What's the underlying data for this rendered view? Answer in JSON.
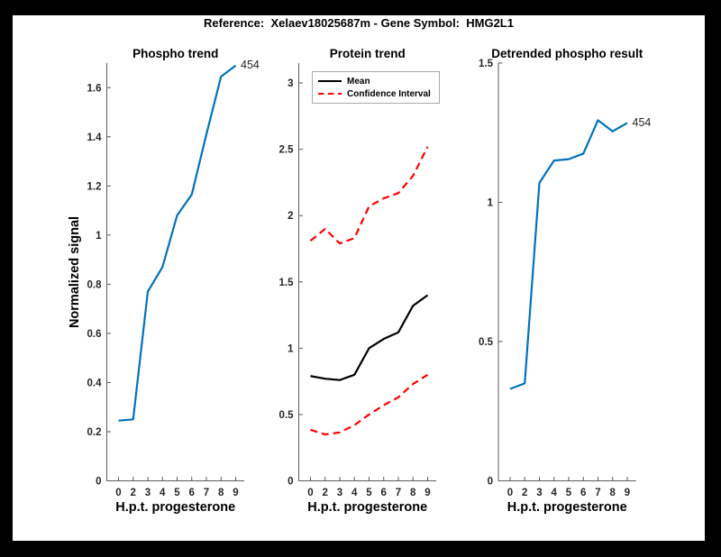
{
  "figure": {
    "title": "Reference:  Xelaev18025687m - Gene Symbol:  HMG2L1",
    "frame_color": "#000000",
    "background_color": "#ffffff"
  },
  "colors": {
    "blue_line": "#0072BD",
    "red_line": "#FF0000",
    "black_line": "#000000",
    "axis": "#5a5a5a",
    "tick_text": "#262626"
  },
  "chart_data": [
    {
      "type": "line",
      "title": "Phospho trend",
      "xlabel": "H.p.t. progesterone",
      "ylabel": "Normalized signal",
      "x_categories": [
        0,
        2,
        3,
        4,
        5,
        6,
        7,
        8,
        9
      ],
      "x_tick_labels": [
        "0",
        "2",
        "3",
        "4",
        "5",
        "6",
        "7",
        "8",
        "9"
      ],
      "ylim": [
        0,
        1.7
      ],
      "yticks": [
        0,
        0.2,
        0.4,
        0.6,
        0.8,
        1,
        1.2,
        1.4,
        1.6
      ],
      "ytick_labels": [
        "0",
        "0.2",
        "0.4",
        "0.6",
        "0.8",
        "1",
        "1.2",
        "1.4",
        "1.6"
      ],
      "grid": false,
      "series": [
        {
          "name": "phospho-signal",
          "color": "#0072BD",
          "line_style": "solid",
          "values": [
            0.245,
            0.25,
            0.77,
            0.87,
            1.08,
            1.165,
            1.41,
            1.645,
            1.69
          ]
        }
      ],
      "end_label": "454"
    },
    {
      "type": "line",
      "title": "Protein trend",
      "xlabel": "H.p.t. progesterone",
      "ylabel": "",
      "x_categories": [
        0,
        2,
        3,
        4,
        5,
        6,
        7,
        8,
        9
      ],
      "x_tick_labels": [
        "0",
        "2",
        "3",
        "4",
        "5",
        "6",
        "7",
        "8",
        "9"
      ],
      "ylim": [
        0,
        3.15
      ],
      "yticks": [
        0,
        0.5,
        1,
        1.5,
        2,
        2.5,
        3
      ],
      "ytick_labels": [
        "0",
        "0.5",
        "1",
        "1.5",
        "2",
        "2.5",
        "3"
      ],
      "grid": false,
      "legend": {
        "position": "top-left",
        "items": [
          {
            "label": "Mean",
            "color": "#000000",
            "line_style": "solid"
          },
          {
            "label": "Confidence Interval",
            "color": "#FF0000",
            "line_style": "dashed"
          }
        ]
      },
      "series": [
        {
          "name": "mean",
          "color": "#000000",
          "line_style": "solid",
          "values": [
            0.79,
            0.77,
            0.76,
            0.8,
            1.0,
            1.07,
            1.12,
            1.32,
            1.4
          ]
        },
        {
          "name": "ci-upper",
          "color": "#FF0000",
          "line_style": "dashed",
          "values": [
            1.81,
            1.9,
            1.79,
            1.83,
            2.07,
            2.13,
            2.17,
            2.3,
            2.52
          ]
        },
        {
          "name": "ci-lower",
          "color": "#FF0000",
          "line_style": "dashed",
          "values": [
            0.385,
            0.35,
            0.365,
            0.42,
            0.5,
            0.57,
            0.63,
            0.73,
            0.8
          ]
        }
      ]
    },
    {
      "type": "line",
      "title": "Detrended phospho result",
      "xlabel": "H.p.t. progesterone",
      "ylabel": "",
      "x_categories": [
        0,
        2,
        3,
        4,
        5,
        6,
        7,
        8,
        9
      ],
      "x_tick_labels": [
        "0",
        "2",
        "3",
        "4",
        "5",
        "6",
        "7",
        "8",
        "9"
      ],
      "ylim": [
        0,
        1.5
      ],
      "yticks": [
        0,
        0.5,
        1,
        1.5
      ],
      "ytick_labels": [
        "0",
        "0.5",
        "1",
        "1.5"
      ],
      "grid": false,
      "series": [
        {
          "name": "detrended-phospho",
          "color": "#0072BD",
          "line_style": "solid",
          "values": [
            0.33,
            0.35,
            1.07,
            1.15,
            1.155,
            1.175,
            1.295,
            1.255,
            1.285
          ]
        }
      ],
      "end_label": "454"
    }
  ]
}
